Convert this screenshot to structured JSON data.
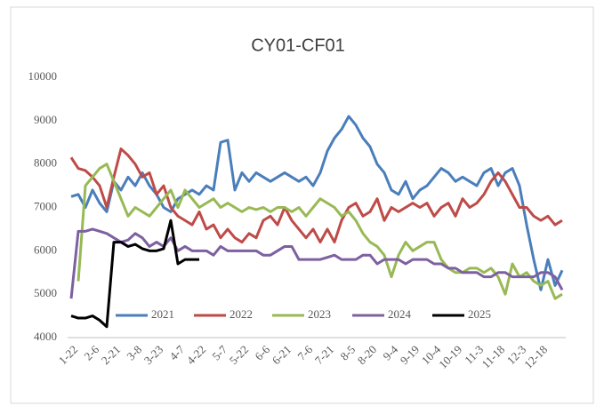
{
  "chart_data": {
    "type": "line",
    "title": "CY01-CF01",
    "categories": [
      "1-22",
      null,
      null,
      "2-6",
      null,
      null,
      "2-21",
      null,
      null,
      "3-8",
      null,
      null,
      "3-23",
      null,
      null,
      "4-7",
      null,
      null,
      "4-22",
      null,
      null,
      "5-7",
      null,
      null,
      "5-22",
      null,
      null,
      "6-6",
      null,
      null,
      "6-21",
      null,
      null,
      "7-6",
      null,
      null,
      "7-21",
      null,
      null,
      "8-5",
      null,
      null,
      "8-20",
      null,
      null,
      "9-4",
      null,
      null,
      "9-19",
      null,
      null,
      "10-4",
      null,
      null,
      "10-19",
      null,
      null,
      "11-3",
      null,
      null,
      "11-18",
      null,
      null,
      "12-3",
      null,
      null,
      "12-18",
      null,
      null,
      null
    ],
    "ylim": [
      4000,
      10000
    ],
    "yticks": [
      4000,
      5000,
      6000,
      7000,
      8000,
      9000,
      10000
    ],
    "grid": false,
    "legend": "bottom",
    "series": [
      {
        "name": "2021",
        "color": "#4a7ebb",
        "values": [
          7250,
          7300,
          7000,
          7400,
          7100,
          6900,
          7600,
          7400,
          7700,
          7500,
          7800,
          7500,
          7300,
          7000,
          6900,
          7200,
          7300,
          7400,
          7300,
          7500,
          7400,
          8500,
          8550,
          7400,
          7800,
          7600,
          7800,
          7700,
          7600,
          7700,
          7800,
          7700,
          7600,
          7700,
          7500,
          7800,
          8300,
          8600,
          8800,
          9100,
          8900,
          8600,
          8400,
          8000,
          7800,
          7400,
          7300,
          7600,
          7200,
          7400,
          7500,
          7700,
          7900,
          7800,
          7600,
          7700,
          7600,
          7500,
          7800,
          7900,
          7500,
          7800,
          7900,
          7500,
          6600,
          5800,
          5100,
          5800,
          5200,
          5550
        ]
      },
      {
        "name": "2022",
        "color": "#be4b48",
        "values": [
          8150,
          7900,
          7850,
          7700,
          7500,
          7000,
          7700,
          8350,
          8200,
          8000,
          7700,
          7800,
          7300,
          7500,
          7000,
          6800,
          6700,
          6600,
          6900,
          6500,
          6600,
          6300,
          6500,
          6300,
          6200,
          6400,
          6300,
          6700,
          6800,
          6600,
          7000,
          6700,
          6500,
          6300,
          6500,
          6200,
          6500,
          6200,
          6700,
          7000,
          7100,
          6800,
          6900,
          7200,
          6700,
          7000,
          6900,
          7000,
          7100,
          7000,
          7100,
          6800,
          7000,
          7100,
          6800,
          7200,
          7000,
          7100,
          7300,
          7600,
          7800,
          7600,
          7300,
          7000,
          7000,
          6800,
          6700,
          6800,
          6600,
          6700
        ]
      },
      {
        "name": "2023",
        "color": "#98b954",
        "values": [
          null,
          5300,
          7500,
          7700,
          7900,
          8000,
          7600,
          7200,
          6800,
          7000,
          6900,
          6800,
          7000,
          7200,
          7400,
          7000,
          7400,
          7200,
          7000,
          7100,
          7200,
          7000,
          7100,
          7000,
          6900,
          7000,
          6950,
          7000,
          6900,
          7000,
          7000,
          6900,
          7000,
          6800,
          7000,
          7200,
          7100,
          7000,
          6800,
          6900,
          6700,
          6400,
          6200,
          6100,
          5900,
          5400,
          5900,
          6200,
          6000,
          6100,
          6200,
          6200,
          5800,
          5600,
          5500,
          5500,
          5600,
          5600,
          5500,
          5600,
          5400,
          5000,
          5700,
          5400,
          5500,
          5300,
          5200,
          5300,
          4900,
          5000
        ]
      },
      {
        "name": "2024",
        "color": "#7d60a0",
        "values": [
          4900,
          6450,
          6450,
          6500,
          6450,
          6400,
          6300,
          6200,
          6250,
          6400,
          6300,
          6100,
          6200,
          6100,
          6300,
          6000,
          6100,
          6000,
          6000,
          6000,
          5900,
          6100,
          6000,
          6000,
          6000,
          6000,
          6000,
          5900,
          5900,
          6000,
          6100,
          6100,
          5800,
          5800,
          5800,
          5800,
          5850,
          5900,
          5800,
          5800,
          5800,
          5900,
          5900,
          5700,
          5800,
          5800,
          5800,
          5700,
          5800,
          5800,
          5800,
          5700,
          5700,
          5600,
          5600,
          5500,
          5500,
          5500,
          5400,
          5400,
          5500,
          5500,
          5400,
          5400,
          5400,
          5400,
          5500,
          5500,
          5400,
          5100
        ]
      },
      {
        "name": "2025",
        "color": "#000000",
        "values": [
          4500,
          4450,
          4450,
          4500,
          4400,
          4250,
          6200,
          6200,
          6100,
          6150,
          6050,
          6000,
          6000,
          6050,
          6700,
          5700,
          5800,
          5800,
          5800,
          null,
          null,
          null,
          null,
          null,
          null,
          null,
          null,
          null,
          null,
          null,
          null,
          null,
          null,
          null,
          null,
          null,
          null,
          null,
          null,
          null,
          null,
          null,
          null,
          null,
          null,
          null,
          null,
          null,
          null,
          null,
          null,
          null,
          null,
          null,
          null,
          null,
          null,
          null,
          null,
          null,
          null,
          null,
          null,
          null,
          null,
          null,
          null,
          null,
          null,
          null
        ]
      }
    ]
  }
}
